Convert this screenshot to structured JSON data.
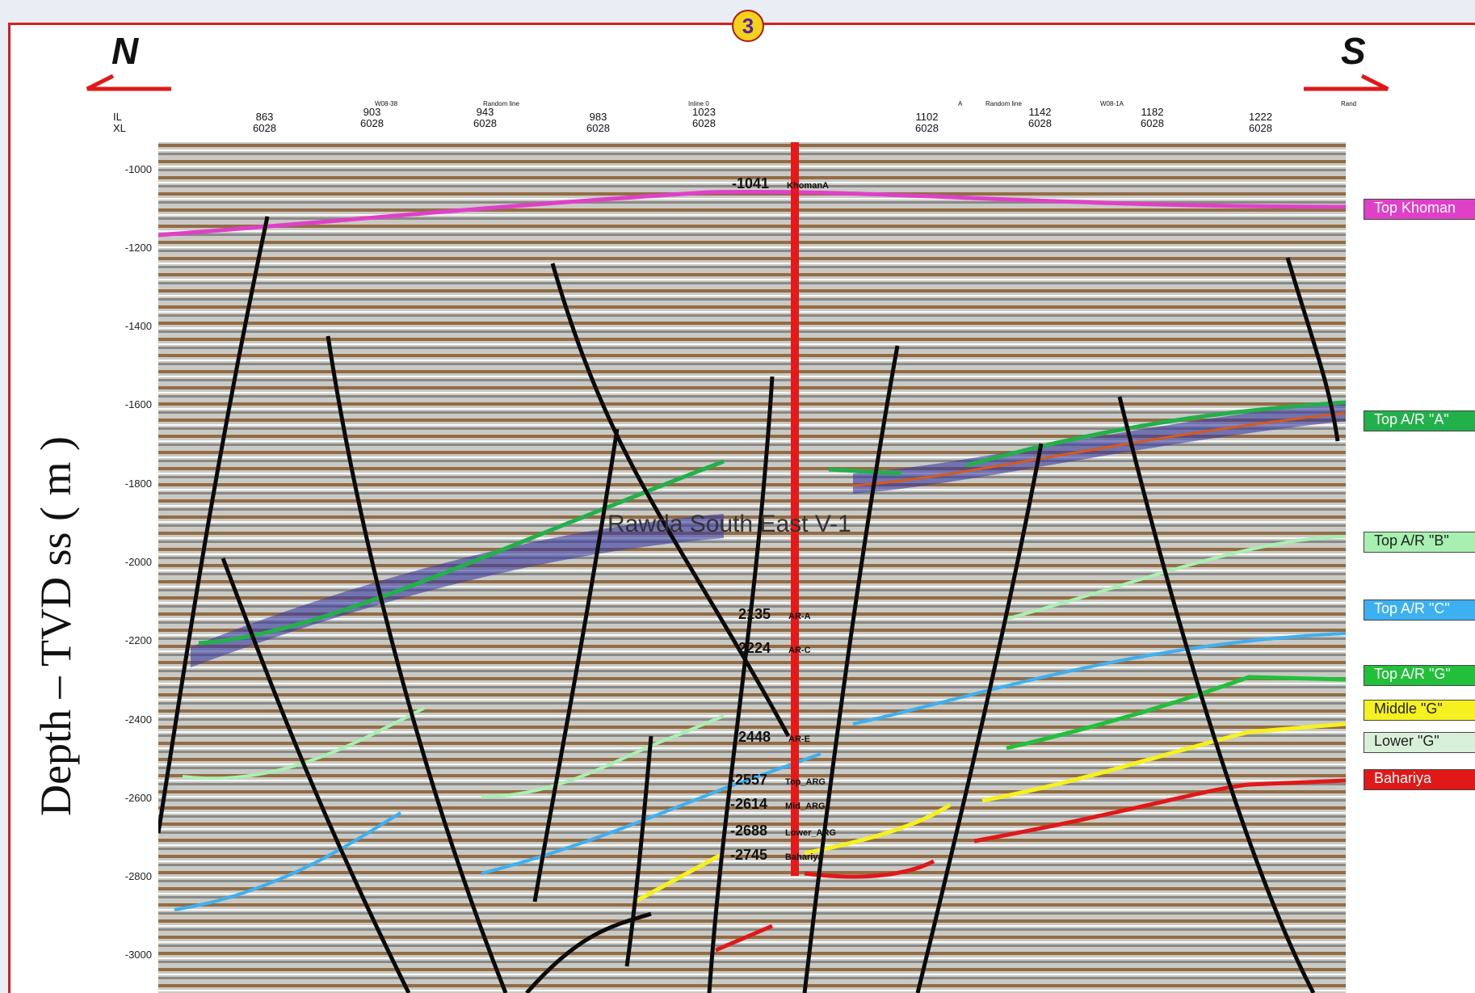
{
  "badge": "3",
  "compass": {
    "north": "N",
    "south": "S"
  },
  "axis": {
    "ylabel": "Depth – TVD ss ( m )",
    "il_label": "IL",
    "xl_label": "XL",
    "ticks": [
      "-1000",
      "-1200",
      "-1400",
      "-1600",
      "-1800",
      "-2000",
      "-2200",
      "-2400",
      "-2600",
      "-2800",
      "-3000"
    ]
  },
  "header": {
    "columns": [
      {
        "il": "863",
        "xl": "6028"
      },
      {
        "il": "903",
        "xl": "6028"
      },
      {
        "il": "943",
        "xl": "6028"
      },
      {
        "il": "983",
        "xl": "6028"
      },
      {
        "il": "1023",
        "xl": "6028"
      },
      {
        "il": "1102",
        "xl": "6028"
      },
      {
        "il": "1142",
        "xl": "6028"
      },
      {
        "il": "1182",
        "xl": "6028"
      },
      {
        "il": "1222",
        "xl": "6028"
      }
    ],
    "markers": [
      "W08-38",
      "Random line",
      "Inline 0",
      "A",
      "Random line",
      "W08-1A",
      "Rand"
    ]
  },
  "well": {
    "name": "Rawda South East V-1",
    "picks": [
      {
        "depth": "-1041",
        "name": "KhomanA"
      },
      {
        "depth": "2135",
        "name": "AR-A"
      },
      {
        "depth": "2224",
        "name": "AR-C"
      },
      {
        "depth": "2448",
        "name": "AR-E"
      },
      {
        "depth": "-2557",
        "name": "Top_ARG"
      },
      {
        "depth": "-2614",
        "name": "Mid_ARG"
      },
      {
        "depth": "-2688",
        "name": "Lower_ARG"
      },
      {
        "depth": "-2745",
        "name": "Bahariya"
      }
    ]
  },
  "legend": [
    {
      "label": "Top Khoman",
      "color": "#e040c8"
    },
    {
      "label": "Top A/R \"A\"",
      "color": "#22b04a"
    },
    {
      "label": "Top A/R \"B\"",
      "color": "#a8f0b0"
    },
    {
      "label": "Top A/R \"C\"",
      "color": "#3cb0f0"
    },
    {
      "label": "Top A/R \"G\"",
      "color": "#22c03a"
    },
    {
      "label": "Middle \"G\"",
      "color": "#f5f020"
    },
    {
      "label": "Lower \"G\"",
      "color": "#d8f0d8"
    },
    {
      "label": "Bahariya",
      "color": "#e01818"
    }
  ]
}
